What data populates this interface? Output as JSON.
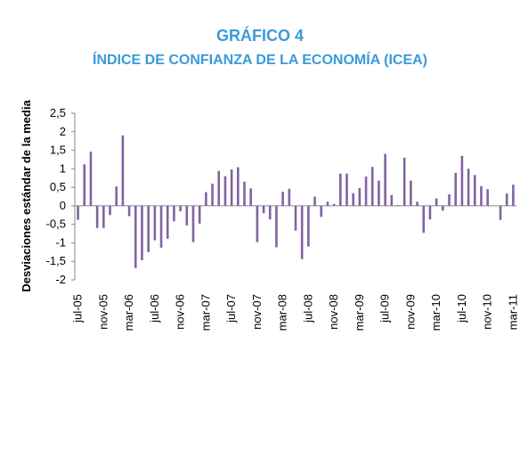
{
  "chart_data": {
    "type": "bar",
    "title": "GRÁFICO 4",
    "subtitle": "ÍNDICE DE CONFIANZA DE LA ECONOMÍA (ICEA)",
    "y_label": "Desviaciones estándar de la media",
    "color": "#8064a2",
    "categories": [
      "jul-05",
      null,
      null,
      null,
      "nov-05",
      null,
      null,
      null,
      "mar-06",
      null,
      null,
      null,
      "jul-06",
      null,
      null,
      null,
      "nov-06",
      null,
      null,
      null,
      "mar-07",
      null,
      null,
      null,
      "jul-07",
      null,
      null,
      null,
      "nov-07",
      null,
      null,
      null,
      "mar-08",
      null,
      null,
      null,
      "jul-08",
      null,
      null,
      null,
      "nov-08",
      null,
      null,
      null,
      "mar-09",
      null,
      null,
      null,
      "jul-09",
      null,
      null,
      null,
      "nov-09",
      null,
      null,
      null,
      "mar-10",
      null,
      null,
      null,
      "jul-10",
      null,
      null,
      null,
      "nov-10",
      null,
      null,
      null,
      "mar-11"
    ],
    "values": [
      -0.38,
      1.12,
      1.46,
      -0.6,
      -0.6,
      -0.25,
      0.52,
      1.9,
      -0.28,
      -1.68,
      -1.47,
      -1.25,
      -0.93,
      -1.13,
      -0.89,
      -0.42,
      -0.15,
      -0.53,
      -0.98,
      -0.48,
      0.37,
      0.6,
      0.94,
      0.8,
      0.98,
      1.04,
      0.65,
      0.47,
      -0.98,
      -0.2,
      -0.37,
      -1.12,
      0.38,
      0.46,
      -0.67,
      -1.44,
      -1.1,
      0.25,
      -0.3,
      0.11,
      0.05,
      0.87,
      0.87,
      0.34,
      0.48,
      0.79,
      1.05,
      0.68,
      1.4,
      0.29,
      0.02,
      1.3,
      0.68,
      0.11,
      -0.73,
      -0.37,
      0.2,
      -0.13,
      0.31,
      0.89,
      1.35,
      1.0,
      0.83,
      0.53,
      0.45,
      0.0,
      -0.38,
      0.33,
      0.57
    ],
    "ylim": [
      -2,
      2.5
    ],
    "yticks": [
      -2,
      {
        "value": -1.5,
        "label": "-1,5"
      },
      -1,
      {
        "value": -0.5,
        "label": "-0,5"
      },
      0,
      {
        "value": 0.5,
        "label": "0,5"
      },
      1,
      {
        "value": 1.5,
        "label": "1,5"
      },
      2,
      {
        "value": 2.5,
        "label": "2,5"
      }
    ],
    "grid": false
  }
}
